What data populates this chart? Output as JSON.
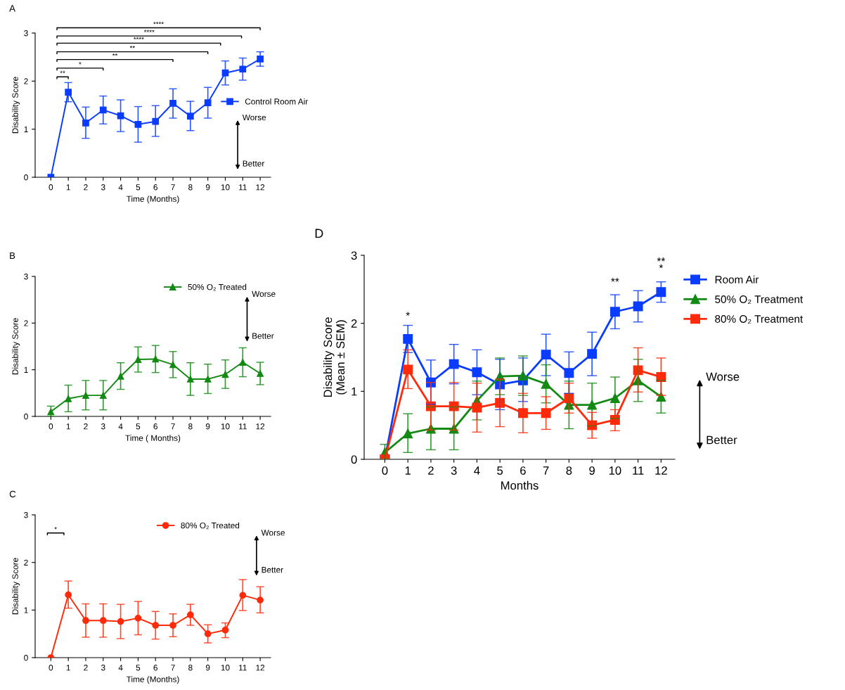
{
  "chart_data": [
    {
      "type": "line",
      "title": "A",
      "xlabel": "Time (Months)",
      "ylabel": "Disability Score",
      "categories": [
        "0",
        "1",
        "2",
        "3",
        "4",
        "5",
        "6",
        "7",
        "8",
        "9",
        "10",
        "11",
        "12"
      ],
      "ylim": [
        0,
        3
      ],
      "yticks": [
        0,
        1,
        2,
        3
      ],
      "legend": "right",
      "grid": false,
      "series": [
        {
          "name": "Control Room Air",
          "color": "#0a3cff",
          "marker": "square",
          "values": [
            0,
            1.77,
            1.13,
            1.4,
            1.28,
            1.1,
            1.16,
            1.54,
            1.27,
            1.55,
            2.17,
            2.25,
            2.46
          ],
          "errors": [
            null,
            [
              1.57,
              1.97
            ],
            [
              0.81,
              1.46
            ],
            [
              1.11,
              1.69
            ],
            [
              0.95,
              1.61
            ],
            [
              0.73,
              1.47
            ],
            [
              0.85,
              1.49
            ],
            [
              1.23,
              1.84
            ],
            [
              0.97,
              1.58
            ],
            [
              1.23,
              1.87
            ],
            [
              1.92,
              2.42
            ],
            [
              2.02,
              2.48
            ],
            [
              2.31,
              2.61
            ]
          ]
        }
      ],
      "annotations": [
        "**",
        "*",
        "**",
        "**",
        "****",
        "****",
        "****",
        "Worse",
        "Better"
      ]
    },
    {
      "type": "line",
      "title": "B",
      "xlabel": "Time ( Months)",
      "ylabel": "Disability Score",
      "categories": [
        "0",
        "1",
        "2",
        "3",
        "4",
        "5",
        "6",
        "7",
        "8",
        "9",
        "10",
        "11",
        "12"
      ],
      "ylim": [
        0,
        3
      ],
      "yticks": [
        0,
        1,
        2,
        3
      ],
      "legend": "top right",
      "grid": false,
      "series": [
        {
          "name": "50% O₂ Treated",
          "color": "#138a13",
          "marker": "triangle",
          "values": [
            0.1,
            0.38,
            0.45,
            0.45,
            0.86,
            1.22,
            1.23,
            1.11,
            0.8,
            0.8,
            0.9,
            1.16,
            0.92
          ],
          "errors": [
            [
              0.0,
              0.22
            ],
            [
              0.1,
              0.67
            ],
            [
              0.14,
              0.77
            ],
            [
              0.14,
              0.77
            ],
            [
              0.58,
              1.15
            ],
            [
              0.95,
              1.49
            ],
            [
              0.94,
              1.52
            ],
            [
              0.83,
              1.39
            ],
            [
              0.45,
              1.15
            ],
            [
              0.49,
              1.12
            ],
            [
              0.6,
              1.21
            ],
            [
              0.85,
              1.47
            ],
            [
              0.68,
              1.16
            ]
          ]
        }
      ],
      "annotations": [
        "Worse",
        "Better"
      ]
    },
    {
      "type": "line",
      "title": "C",
      "xlabel": "Time (Months)",
      "ylabel": "Disability Score",
      "categories": [
        "0",
        "1",
        "2",
        "3",
        "4",
        "5",
        "6",
        "7",
        "8",
        "9",
        "10",
        "11",
        "12"
      ],
      "ylim": [
        0,
        3
      ],
      "yticks": [
        0,
        1,
        2,
        3
      ],
      "legend": "top right",
      "grid": false,
      "series": [
        {
          "name": "80% O₂ Treated",
          "color": "#ff2a0a",
          "marker": "circle",
          "values": [
            0,
            1.32,
            0.78,
            0.78,
            0.76,
            0.83,
            0.68,
            0.68,
            0.9,
            0.5,
            0.58,
            1.31,
            1.21
          ],
          "errors": [
            null,
            [
              1.04,
              1.61
            ],
            [
              0.43,
              1.13
            ],
            [
              0.43,
              1.13
            ],
            [
              0.4,
              1.12
            ],
            [
              0.48,
              1.18
            ],
            [
              0.39,
              0.97
            ],
            [
              0.44,
              0.92
            ],
            [
              0.68,
              1.12
            ],
            [
              0.31,
              0.69
            ],
            [
              0.42,
              0.73
            ],
            [
              0.99,
              1.64
            ],
            [
              0.94,
              1.49
            ]
          ]
        }
      ],
      "annotations": [
        "*",
        "Worse",
        "Better"
      ]
    },
    {
      "type": "line",
      "title": "D",
      "xlabel": "Months",
      "ylabel": "Disability Score\n(Mean ± SEM)",
      "categories": [
        "0",
        "1",
        "2",
        "3",
        "4",
        "5",
        "6",
        "7",
        "8",
        "9",
        "10",
        "11",
        "12"
      ],
      "ylim": [
        0,
        3
      ],
      "yticks": [
        0,
        1,
        2,
        3
      ],
      "legend": "right",
      "grid": false,
      "series": [
        {
          "name": "Room Air",
          "color": "#0a3cff",
          "marker": "square",
          "values": [
            0,
            1.77,
            1.13,
            1.4,
            1.28,
            1.1,
            1.16,
            1.54,
            1.27,
            1.55,
            2.17,
            2.25,
            2.46
          ],
          "errors": [
            null,
            [
              1.57,
              1.97
            ],
            [
              0.81,
              1.46
            ],
            [
              1.11,
              1.69
            ],
            [
              0.95,
              1.61
            ],
            [
              0.73,
              1.47
            ],
            [
              0.85,
              1.49
            ],
            [
              1.23,
              1.84
            ],
            [
              0.97,
              1.58
            ],
            [
              1.23,
              1.87
            ],
            [
              1.92,
              2.42
            ],
            [
              2.02,
              2.48
            ],
            [
              2.31,
              2.61
            ]
          ]
        },
        {
          "name": "50% O₂ Treatment",
          "color": "#138a13",
          "marker": "triangle",
          "values": [
            0.1,
            0.38,
            0.45,
            0.45,
            0.86,
            1.22,
            1.23,
            1.11,
            0.8,
            0.8,
            0.9,
            1.16,
            0.92
          ],
          "errors": [
            [
              0.0,
              0.22
            ],
            [
              0.1,
              0.67
            ],
            [
              0.14,
              0.77
            ],
            [
              0.14,
              0.77
            ],
            [
              0.58,
              1.15
            ],
            [
              0.95,
              1.49
            ],
            [
              0.94,
              1.52
            ],
            [
              0.83,
              1.39
            ],
            [
              0.45,
              1.15
            ],
            [
              0.49,
              1.12
            ],
            [
              0.6,
              1.21
            ],
            [
              0.85,
              1.47
            ],
            [
              0.68,
              1.16
            ]
          ]
        },
        {
          "name": "80% O₂ Treatment",
          "color": "#ff2a0a",
          "marker": "square",
          "values": [
            0,
            1.32,
            0.78,
            0.78,
            0.76,
            0.83,
            0.68,
            0.68,
            0.9,
            0.5,
            0.58,
            1.31,
            1.21
          ],
          "errors": [
            null,
            [
              1.04,
              1.61
            ],
            [
              0.43,
              1.13
            ],
            [
              0.43,
              1.13
            ],
            [
              0.4,
              1.12
            ],
            [
              0.48,
              1.18
            ],
            [
              0.39,
              0.97
            ],
            [
              0.44,
              0.92
            ],
            [
              0.68,
              1.12
            ],
            [
              0.31,
              0.69
            ],
            [
              0.42,
              0.73
            ],
            [
              0.99,
              1.64
            ],
            [
              0.94,
              1.49
            ]
          ]
        }
      ],
      "annotations": [
        "*",
        "**",
        "**",
        "*",
        "Worse",
        "Better"
      ]
    }
  ]
}
